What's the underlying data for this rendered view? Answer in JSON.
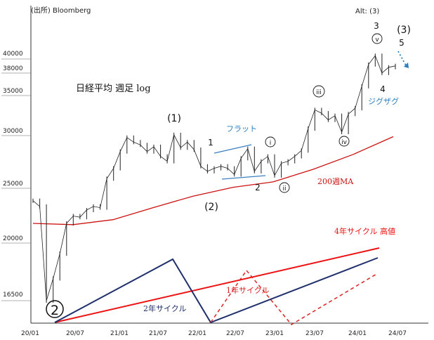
{
  "colors": {
    "price": "#222222",
    "ma200": "#cc1111",
    "cycle4_high": "#ee1111",
    "cycle2": "#1f2f6b",
    "cycle1": "#dd2222",
    "flat_lines": "#3a7fc1",
    "annot_blue": "#2a7fc1"
  },
  "chart_data": {
    "type": "line",
    "source": "(出所) Bloomberg",
    "title": "日経平均 週足 log",
    "alt_label": "Alt: (3)",
    "ylim": [
      15500,
      45000
    ],
    "log_scale": true,
    "y_ticks": [
      16500,
      20000,
      25000,
      30000,
      35000,
      38000,
      40000
    ],
    "x_ticks": [
      "20/01",
      "20/07",
      "21/01",
      "21/07",
      "22/01",
      "22/07",
      "23/01",
      "23/07",
      "24/01",
      "24/07"
    ],
    "grid": false,
    "series": [
      {
        "name": "",
        "role": "price-weekly-approx",
        "x": [
          "2020-01",
          "2020-02",
          "2020-03a",
          "2020-03b",
          "2020-04",
          "2020-05",
          "2020-06",
          "2020-07",
          "2020-08",
          "2020-09",
          "2020-10",
          "2020-11",
          "2020-12",
          "2021-01",
          "2021-02",
          "2021-03",
          "2021-04",
          "2021-05",
          "2021-06",
          "2021-07",
          "2021-08",
          "2021-09",
          "2021-10",
          "2021-11",
          "2021-12",
          "2022-01",
          "2022-02",
          "2022-03",
          "2022-04",
          "2022-05",
          "2022-06",
          "2022-07",
          "2022-08",
          "2022-09",
          "2022-10",
          "2022-11",
          "2022-12",
          "2023-01",
          "2023-02",
          "2023-03",
          "2023-04",
          "2023-05",
          "2023-06",
          "2023-07",
          "2023-08",
          "2023-09",
          "2023-10",
          "2023-11",
          "2023-12",
          "2024-01",
          "2024-02",
          "2024-03",
          "2024-04",
          "2024-05",
          "2024-06"
        ],
        "values": [
          23800,
          23300,
          16500,
          17900,
          19600,
          21900,
          22500,
          22400,
          23000,
          23300,
          23200,
          25800,
          26800,
          28500,
          30000,
          29500,
          29200,
          28500,
          29000,
          28000,
          27500,
          30300,
          28900,
          29500,
          28700,
          27000,
          26500,
          26800,
          27000,
          26800,
          26200,
          27800,
          28800,
          26500,
          27500,
          28000,
          26100,
          27300,
          27500,
          28000,
          28600,
          31000,
          33200,
          32800,
          32000,
          32500,
          30600,
          32700,
          33400,
          36200,
          39200,
          40500,
          38000,
          38800,
          39000
        ]
      },
      {
        "name": "200週MA",
        "x": [
          "2020-01",
          "2020-07",
          "2021-01",
          "2021-07",
          "2022-01",
          "2022-07",
          "2023-01",
          "2023-07",
          "2024-01",
          "2024-07"
        ],
        "values": [
          21900,
          21800,
          22200,
          23200,
          24200,
          25000,
          25500,
          26700,
          28200,
          30100
        ]
      }
    ],
    "wave_labels": {
      "primary_2": "2",
      "wave_1": "(1)",
      "wave_2": "(2)",
      "wave_3": "(3)",
      "minor_1": "1",
      "minor_2": "2",
      "minor_3": "3",
      "minor_4": "4",
      "minor_5": "5",
      "circ_i": "i",
      "circ_ii": "ii",
      "circ_iii": "iii",
      "circ_iv": "iv",
      "circ_v": "v"
    },
    "annotations": {
      "flat": "フラット",
      "zigzag": "ジグザグ",
      "ma200": "200週MA",
      "cycle4_high": "4年サイクル 高値",
      "cycle2": "2年サイクル",
      "cycle1": "1年サイクル"
    }
  }
}
